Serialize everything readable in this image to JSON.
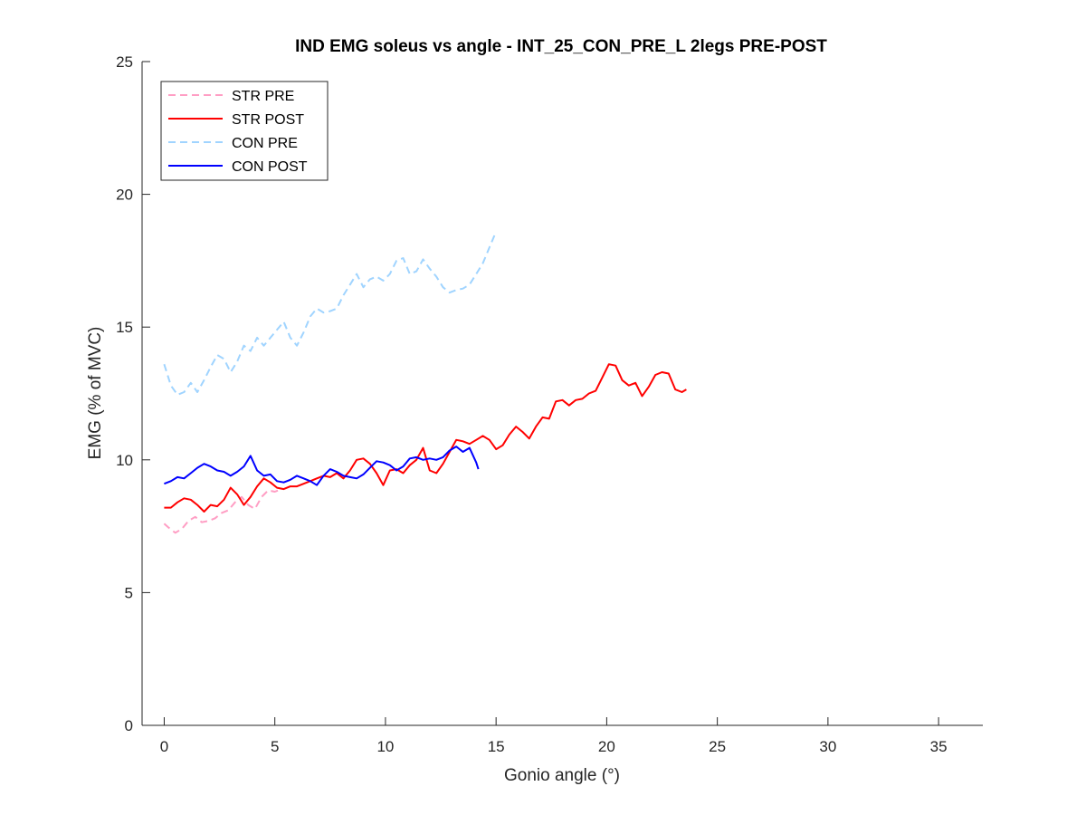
{
  "chart_data": {
    "type": "line",
    "title": "IND EMG soleus vs angle - INT_25_CON_PRE_L 2legs PRE-POST",
    "xlabel": "Gonio angle (°)",
    "ylabel": "EMG (% of MVC)",
    "xlim": [
      -1,
      37
    ],
    "ylim": [
      0,
      25
    ],
    "xticks": [
      0,
      5,
      10,
      15,
      20,
      25,
      30,
      35
    ],
    "yticks": [
      0,
      5,
      10,
      15,
      20,
      25
    ],
    "grid": false,
    "legend_position": "top-left",
    "series": [
      {
        "name": "STR PRE",
        "color": "#ff9ec4",
        "dash": "dashed",
        "x": [
          0,
          0.2,
          0.5,
          0.8,
          1.1,
          1.4,
          1.7,
          2.0,
          2.3,
          2.6,
          2.9,
          3.2,
          3.5,
          3.8,
          4.1,
          4.4,
          4.7,
          5.0,
          5.3
        ],
        "y": [
          7.6,
          7.45,
          7.25,
          7.4,
          7.7,
          7.85,
          7.65,
          7.7,
          7.8,
          8.0,
          8.1,
          8.4,
          8.6,
          8.3,
          8.15,
          8.6,
          8.85,
          8.8,
          8.9
        ]
      },
      {
        "name": "STR POST",
        "color": "#ff0000",
        "dash": "solid",
        "x": [
          0,
          0.3,
          0.6,
          0.9,
          1.2,
          1.5,
          1.8,
          2.1,
          2.4,
          2.7,
          3.0,
          3.3,
          3.6,
          3.9,
          4.2,
          4.5,
          4.8,
          5.1,
          5.4,
          5.7,
          6.0,
          6.3,
          6.6,
          6.9,
          7.2,
          7.5,
          7.8,
          8.1,
          8.4,
          8.7,
          9.0,
          9.3,
          9.6,
          9.9,
          10.2,
          10.5,
          10.8,
          11.1,
          11.4,
          11.7,
          12.0,
          12.3,
          12.6,
          12.9,
          13.2,
          13.5,
          13.8,
          14.1,
          14.4,
          14.7,
          15.0,
          15.3,
          15.6,
          15.9,
          16.2,
          16.5,
          16.8,
          17.1,
          17.4,
          17.7,
          18.0,
          18.3,
          18.6,
          18.9,
          19.2,
          19.5,
          19.8,
          20.1,
          20.4,
          20.7,
          21.0,
          21.3,
          21.6,
          21.9,
          22.2,
          22.5,
          22.8,
          23.1,
          23.4,
          23.6
        ],
        "y": [
          8.2,
          8.2,
          8.4,
          8.55,
          8.5,
          8.3,
          8.05,
          8.3,
          8.25,
          8.5,
          8.95,
          8.7,
          8.3,
          8.6,
          9.0,
          9.3,
          9.15,
          8.95,
          8.9,
          9.0,
          9.0,
          9.1,
          9.2,
          9.3,
          9.4,
          9.35,
          9.5,
          9.3,
          9.6,
          10.0,
          10.05,
          9.85,
          9.5,
          9.05,
          9.6,
          9.65,
          9.5,
          9.8,
          10.0,
          10.45,
          9.6,
          9.5,
          9.85,
          10.3,
          10.75,
          10.7,
          10.6,
          10.75,
          10.9,
          10.75,
          10.4,
          10.55,
          10.95,
          11.25,
          11.05,
          10.8,
          11.25,
          11.6,
          11.55,
          12.2,
          12.25,
          12.05,
          12.25,
          12.3,
          12.5,
          12.6,
          13.1,
          13.6,
          13.55,
          13.0,
          12.8,
          12.9,
          12.4,
          12.75,
          13.2,
          13.3,
          13.25,
          12.65,
          12.55,
          12.65
        ]
      },
      {
        "name": "CON PRE",
        "color": "#a0d4ff",
        "dash": "dashed",
        "x": [
          0,
          0.3,
          0.6,
          0.9,
          1.2,
          1.5,
          1.8,
          2.1,
          2.4,
          2.7,
          3.0,
          3.3,
          3.6,
          3.9,
          4.2,
          4.5,
          4.8,
          5.1,
          5.4,
          5.7,
          6.0,
          6.3,
          6.6,
          6.9,
          7.2,
          7.5,
          7.8,
          8.1,
          8.4,
          8.7,
          9.0,
          9.3,
          9.6,
          9.9,
          10.2,
          10.5,
          10.8,
          11.1,
          11.4,
          11.7,
          12.0,
          12.3,
          12.6,
          12.9,
          13.2,
          13.5,
          13.8,
          14.1,
          14.4,
          14.7,
          15.0
        ],
        "y": [
          13.6,
          12.8,
          12.45,
          12.55,
          12.9,
          12.55,
          13.0,
          13.5,
          13.95,
          13.8,
          13.3,
          13.7,
          14.3,
          14.1,
          14.6,
          14.3,
          14.6,
          14.9,
          15.2,
          14.6,
          14.3,
          14.8,
          15.4,
          15.7,
          15.55,
          15.6,
          15.7,
          16.2,
          16.6,
          17.0,
          16.5,
          16.8,
          16.9,
          16.75,
          17.0,
          17.5,
          17.6,
          17.0,
          17.1,
          17.55,
          17.2,
          16.9,
          16.5,
          16.3,
          16.4,
          16.45,
          16.6,
          17.0,
          17.4,
          18.0,
          18.6
        ]
      },
      {
        "name": "CON POST",
        "color": "#0000ff",
        "dash": "solid",
        "x": [
          0,
          0.3,
          0.6,
          0.9,
          1.2,
          1.5,
          1.8,
          2.1,
          2.4,
          2.7,
          3.0,
          3.3,
          3.6,
          3.9,
          4.2,
          4.5,
          4.8,
          5.1,
          5.4,
          5.7,
          6.0,
          6.3,
          6.6,
          6.9,
          7.2,
          7.5,
          7.8,
          8.1,
          8.4,
          8.7,
          9.0,
          9.3,
          9.6,
          9.9,
          10.2,
          10.5,
          10.8,
          11.1,
          11.4,
          11.7,
          12.0,
          12.3,
          12.6,
          12.9,
          13.2,
          13.5,
          13.8,
          14.1,
          14.2
        ],
        "y": [
          9.1,
          9.2,
          9.35,
          9.3,
          9.5,
          9.7,
          9.85,
          9.75,
          9.6,
          9.55,
          9.4,
          9.55,
          9.75,
          10.15,
          9.6,
          9.4,
          9.45,
          9.2,
          9.15,
          9.25,
          9.4,
          9.3,
          9.2,
          9.05,
          9.4,
          9.65,
          9.55,
          9.4,
          9.35,
          9.3,
          9.45,
          9.7,
          9.95,
          9.9,
          9.8,
          9.6,
          9.75,
          10.05,
          10.1,
          10.0,
          10.05,
          10.0,
          10.1,
          10.35,
          10.5,
          10.3,
          10.45,
          9.9,
          9.65
        ]
      }
    ]
  }
}
